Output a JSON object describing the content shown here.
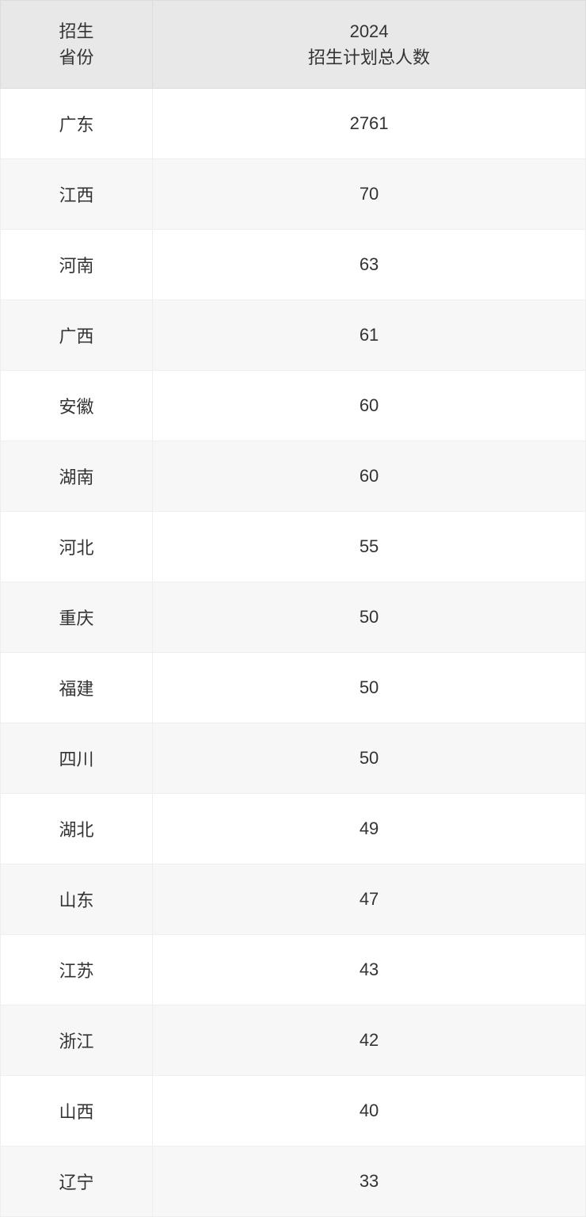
{
  "table": {
    "columns": [
      {
        "label_line1": "招生",
        "label_line2": "省份"
      },
      {
        "label_line1": "2024",
        "label_line2": "招生计划总人数"
      }
    ],
    "rows": [
      {
        "province": "广东",
        "count": "2761"
      },
      {
        "province": "江西",
        "count": "70"
      },
      {
        "province": "河南",
        "count": "63"
      },
      {
        "province": "广西",
        "count": "61"
      },
      {
        "province": "安徽",
        "count": "60"
      },
      {
        "province": "湖南",
        "count": "60"
      },
      {
        "province": "河北",
        "count": "55"
      },
      {
        "province": "重庆",
        "count": "50"
      },
      {
        "province": "福建",
        "count": "50"
      },
      {
        "province": "四川",
        "count": "50"
      },
      {
        "province": "湖北",
        "count": "49"
      },
      {
        "province": "山东",
        "count": "47"
      },
      {
        "province": "江苏",
        "count": "43"
      },
      {
        "province": "浙江",
        "count": "42"
      },
      {
        "province": "山西",
        "count": "40"
      },
      {
        "province": "辽宁",
        "count": "33"
      }
    ],
    "styling": {
      "header_bg": "#e8e8e8",
      "row_odd_bg": "#ffffff",
      "row_even_bg": "#f7f7f7",
      "border_color": "#eeeeee",
      "header_border_color": "#dddddd",
      "text_color": "#333333",
      "font_size": 22,
      "col_widths": [
        "26%",
        "74%"
      ]
    }
  }
}
